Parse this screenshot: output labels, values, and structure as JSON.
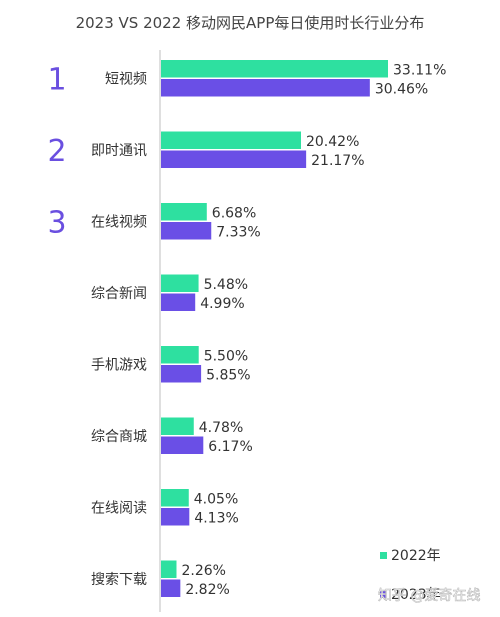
{
  "chart_data": {
    "type": "bar",
    "orientation": "horizontal",
    "title": "2023 VS 2022 移动网民APP每日使用时长行业分布",
    "categories": [
      "短视频",
      "即时通讯",
      "在线视频",
      "综合新闻",
      "手机游戏",
      "综合商城",
      "在线阅读",
      "搜索下载"
    ],
    "ranks": [
      "1",
      "2",
      "3"
    ],
    "series": [
      {
        "name": "2022年",
        "color": "#2ee0a0",
        "values": [
          33.11,
          20.42,
          6.68,
          5.48,
          5.5,
          4.78,
          4.05,
          2.26
        ],
        "labels": [
          "33.11%",
          "20.42%",
          "6.68%",
          "5.48%",
          "5.50%",
          "4.78%",
          "4.05%",
          "2.26%"
        ]
      },
      {
        "name": "2023年",
        "color": "#6a4fe6",
        "values": [
          30.46,
          21.17,
          7.33,
          4.99,
          5.85,
          6.17,
          4.13,
          2.82
        ],
        "labels": [
          "30.46%",
          "21.17%",
          "7.33%",
          "4.99%",
          "5.85%",
          "6.17%",
          "4.13%",
          "2.82%"
        ]
      }
    ],
    "legend_position": "bottom-right",
    "grid": false,
    "axis_color": "#bfbfbf",
    "rank_color": "#6a4fe0"
  },
  "watermark": {
    "text": "知乎 @爱奇在线"
  }
}
